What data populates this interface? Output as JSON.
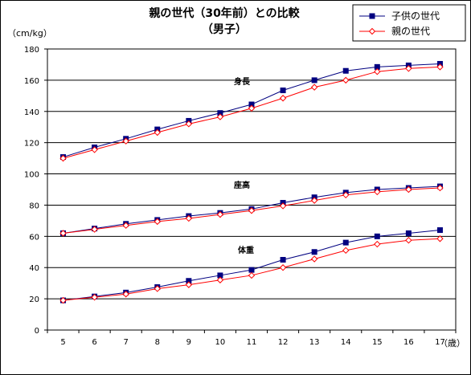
{
  "chart_data": {
    "type": "line",
    "title": "親の世代（30年前）との比較",
    "subtitle": "（男子）",
    "ylabel": "（cm/kg）",
    "xlabel": "（歳）",
    "ylim": [
      0,
      180
    ],
    "yticks": [
      0,
      20,
      40,
      60,
      80,
      100,
      120,
      140,
      160,
      180
    ],
    "x": [
      5,
      6,
      7,
      8,
      9,
      10,
      11,
      12,
      13,
      14,
      15,
      16,
      17
    ],
    "grid": true,
    "legend_position": "top-right",
    "series_labels": [
      "身長",
      "座高",
      "体重"
    ],
    "series": [
      {
        "name": "子供の世代",
        "group": "身長",
        "color": "#000080",
        "marker": "square-filled",
        "values": [
          110.8,
          117,
          122.5,
          128.5,
          134,
          139,
          144.5,
          153.5,
          160,
          166,
          168.5,
          169.5,
          170.5
        ]
      },
      {
        "name": "親の世代",
        "group": "身長",
        "color": "#ff0000",
        "marker": "diamond-open",
        "values": [
          110,
          115.5,
          121,
          126.5,
          132,
          136.5,
          142,
          148.5,
          155.5,
          160,
          165.5,
          167.5,
          168.5
        ]
      },
      {
        "name": "子供の世代",
        "group": "座高",
        "color": "#000080",
        "marker": "square-filled",
        "values": [
          62,
          65,
          68,
          70.5,
          73,
          75,
          77.5,
          81.5,
          85,
          88,
          90,
          91,
          92
        ]
      },
      {
        "name": "親の世代",
        "group": "座高",
        "color": "#ff0000",
        "marker": "diamond-open",
        "values": [
          62,
          64.5,
          67,
          69.5,
          71.5,
          74,
          76.5,
          79.5,
          83,
          86.5,
          88.5,
          90,
          91
        ]
      },
      {
        "name": "子供の世代",
        "group": "体重",
        "color": "#000080",
        "marker": "square-filled",
        "values": [
          19,
          21.5,
          24,
          27.5,
          31.5,
          35,
          38.5,
          45,
          50,
          56,
          60,
          62,
          64
        ]
      },
      {
        "name": "親の世代",
        "group": "体重",
        "color": "#ff0000",
        "marker": "diamond-open",
        "values": [
          19,
          21,
          23,
          26.5,
          29,
          32,
          35,
          40,
          45.5,
          51,
          55,
          57.5,
          58.5
        ]
      }
    ]
  }
}
